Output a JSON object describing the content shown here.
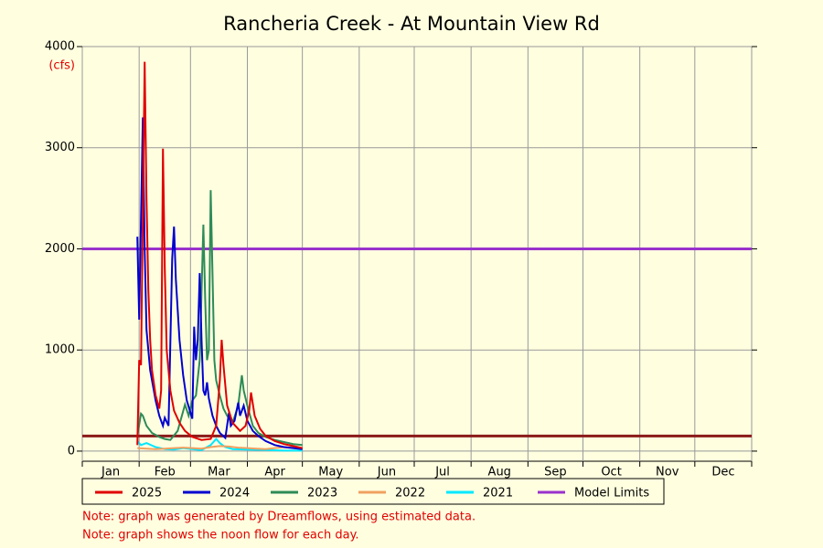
{
  "chart_data": {
    "type": "line",
    "title": "Rancheria Creek - At Mountain View Rd",
    "y_unit": "(cfs)",
    "xlim": [
      0,
      365
    ],
    "xticks": [
      {
        "value": 15.5,
        "label": "Jan"
      },
      {
        "value": 45,
        "label": "Feb"
      },
      {
        "value": 74.5,
        "label": "Mar"
      },
      {
        "value": 105,
        "label": "Apr"
      },
      {
        "value": 135.5,
        "label": "May"
      },
      {
        "value": 166,
        "label": "Jun"
      },
      {
        "value": 196.5,
        "label": "Jul"
      },
      {
        "value": 227.5,
        "label": "Aug"
      },
      {
        "value": 258,
        "label": "Sep"
      },
      {
        "value": 288.5,
        "label": "Oct"
      },
      {
        "value": 319,
        "label": "Nov"
      },
      {
        "value": 349.5,
        "label": "Dec"
      }
    ],
    "xgrid": [
      0,
      31,
      59,
      90,
      120,
      151,
      181,
      212,
      243,
      273,
      304,
      334,
      365
    ],
    "ylim": [
      -100,
      4000
    ],
    "yticks": [
      0,
      1000,
      2000,
      3000,
      4000
    ],
    "grid": true,
    "series": [
      {
        "name": "2025",
        "color": "#e00000",
        "x": [
          30,
          31,
          32,
          34,
          35,
          36,
          37,
          38,
          40,
          42,
          43,
          44,
          45,
          46,
          48,
          50,
          53,
          56,
          60,
          65,
          70,
          73,
          75,
          76,
          77,
          79,
          82,
          86,
          89,
          91,
          92,
          94,
          97,
          100,
          105,
          110,
          115,
          120
        ],
        "values": [
          60,
          900,
          850,
          3850,
          2500,
          1600,
          1100,
          800,
          550,
          420,
          600,
          2990,
          1800,
          1000,
          600,
          400,
          280,
          200,
          140,
          110,
          120,
          250,
          700,
          1100,
          850,
          450,
          280,
          200,
          250,
          400,
          580,
          350,
          220,
          150,
          100,
          70,
          50,
          30
        ]
      },
      {
        "name": "2024",
        "color": "#0000d0",
        "x": [
          30,
          31,
          33,
          34,
          35,
          37,
          40,
          42,
          44,
          45,
          47,
          49,
          50,
          51,
          53,
          55,
          57,
          60,
          61,
          62,
          63,
          64,
          65,
          66,
          67,
          68,
          69,
          71,
          73,
          75,
          78,
          80,
          81,
          83,
          85,
          86,
          88,
          90,
          93,
          96,
          100,
          105,
          110,
          115,
          120
        ],
        "values": [
          2120,
          1300,
          3300,
          2000,
          1200,
          800,
          500,
          350,
          250,
          330,
          250,
          1900,
          2220,
          1700,
          1100,
          750,
          500,
          320,
          1230,
          900,
          1100,
          1760,
          1100,
          600,
          550,
          680,
          520,
          350,
          250,
          180,
          130,
          380,
          250,
          300,
          480,
          350,
          450,
          300,
          200,
          150,
          100,
          60,
          40,
          30,
          20
        ]
      },
      {
        "name": "2023",
        "color": "#2e8b57",
        "x": [
          30,
          31,
          32,
          33,
          35,
          38,
          42,
          45,
          48,
          52,
          56,
          58,
          60,
          62,
          64,
          66,
          67,
          68,
          69,
          70,
          71,
          72,
          73,
          75,
          77,
          79,
          82,
          85,
          87,
          88,
          90,
          93,
          96,
          100,
          105,
          110,
          115,
          120
        ],
        "values": [
          150,
          260,
          370,
          350,
          250,
          180,
          140,
          120,
          110,
          200,
          460,
          350,
          500,
          550,
          900,
          2240,
          1500,
          900,
          1000,
          2580,
          1750,
          900,
          700,
          550,
          420,
          350,
          280,
          450,
          750,
          600,
          450,
          250,
          180,
          140,
          110,
          90,
          70,
          60
        ]
      },
      {
        "name": "2022",
        "color": "#f0a060",
        "x": [
          30,
          35,
          40,
          45,
          50,
          55,
          60,
          65,
          70,
          75,
          80,
          85,
          90,
          95,
          100,
          105,
          110,
          115,
          120
        ],
        "values": [
          30,
          25,
          20,
          25,
          30,
          35,
          30,
          25,
          40,
          50,
          45,
          35,
          30,
          25,
          20,
          30,
          40,
          35,
          30
        ]
      },
      {
        "name": "2021",
        "color": "#00e8ff",
        "x": [
          30,
          32,
          35,
          40,
          45,
          50,
          55,
          60,
          65,
          70,
          73,
          75,
          78,
          82,
          90,
          100,
          110,
          120
        ],
        "values": [
          100,
          60,
          80,
          40,
          20,
          15,
          30,
          20,
          10,
          60,
          120,
          80,
          40,
          20,
          15,
          10,
          5,
          5
        ]
      }
    ],
    "limits": {
      "name": "Model Limits",
      "values": [
        2000,
        150
      ],
      "colors": [
        "#9932cc",
        "#8b1a1a"
      ]
    },
    "notes": [
      "Note: graph was generated by Dreamflows, using estimated data.",
      "Note: graph shows the noon flow for each day."
    ]
  }
}
